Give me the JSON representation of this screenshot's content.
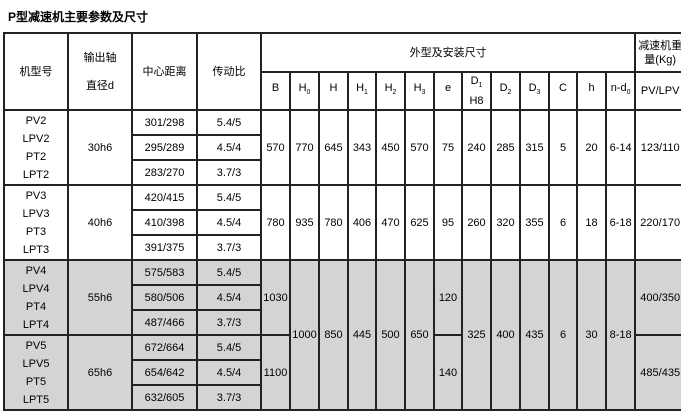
{
  "title": "P型减速机主要参数及尺寸",
  "headers": {
    "model": "机型号",
    "shaft_line1": "输出轴",
    "shaft_line2": "直径d",
    "center": "中心距离",
    "ratio": "传动比",
    "dims": "外型及安装尺寸",
    "weight_line1": "减速机重",
    "weight_line2": "量(Kg)",
    "cols": [
      {
        "m": "B",
        "s": ""
      },
      {
        "m": "H",
        "s": "0"
      },
      {
        "m": "H",
        "s": ""
      },
      {
        "m": "H",
        "s": "1"
      },
      {
        "m": "H",
        "s": "2"
      },
      {
        "m": "H",
        "s": "3"
      },
      {
        "m": "e",
        "s": ""
      },
      {
        "m": "D",
        "s": "1"
      },
      {
        "m": "D",
        "s": "2"
      },
      {
        "m": "D",
        "s": "3"
      },
      {
        "m": "C",
        "s": ""
      },
      {
        "m": "h",
        "s": ""
      },
      {
        "m": "n-d",
        "s": "0"
      }
    ],
    "d1_line2": "H8",
    "weight_sub": "PV/LPV"
  },
  "groups": [
    {
      "models": [
        "PV2",
        "LPV2",
        "PT2",
        "LPT2"
      ],
      "shaft": "30h6",
      "rows": [
        [
          "301/298",
          "5.4/5"
        ],
        [
          "295/289",
          "4.5/4"
        ],
        [
          "283/270",
          "3.7/3"
        ]
      ],
      "dims": [
        "570",
        "770",
        "645",
        "343",
        "450",
        "570",
        "75",
        "240",
        "285",
        "315",
        "5",
        "20",
        "6-14"
      ],
      "weight": "123/110"
    },
    {
      "models": [
        "PV3",
        "LPV3",
        "PT3",
        "LPT3"
      ],
      "shaft": "40h6",
      "rows": [
        [
          "420/415",
          "5.4/5"
        ],
        [
          "410/398",
          "4.5/4"
        ],
        [
          "391/375",
          "3.7/3"
        ]
      ],
      "dims": [
        "780",
        "935",
        "780",
        "406",
        "470",
        "625",
        "95",
        "260",
        "320",
        "355",
        "6",
        "18",
        "6-18"
      ],
      "weight": "220/170"
    },
    {
      "models": [
        "PV4",
        "LPV4",
        "PT4",
        "LPT4"
      ],
      "shaft": "55h6",
      "rows": [
        [
          "575/583",
          "5.4/5"
        ],
        [
          "580/506",
          "4.5/4"
        ],
        [
          "487/466",
          "3.7/3"
        ]
      ],
      "B": "1030",
      "e": "120",
      "weight": "400/350"
    },
    {
      "models": [
        "PV5",
        "LPV5",
        "PT5",
        "LPT5"
      ],
      "shaft": "65h6",
      "rows": [
        [
          "672/664",
          "5.4/5"
        ],
        [
          "654/642",
          "4.5/4"
        ],
        [
          "632/605",
          "3.7/3"
        ]
      ],
      "B": "1100",
      "e": "140",
      "weight": "485/435"
    }
  ],
  "shared_45": {
    "H0": "1000",
    "H": "850",
    "H1": "445",
    "H2": "500",
    "H3": "650",
    "D1": "325",
    "D2": "400",
    "D3": "435",
    "C": "6",
    "h": "30",
    "nd0": "8-18"
  }
}
